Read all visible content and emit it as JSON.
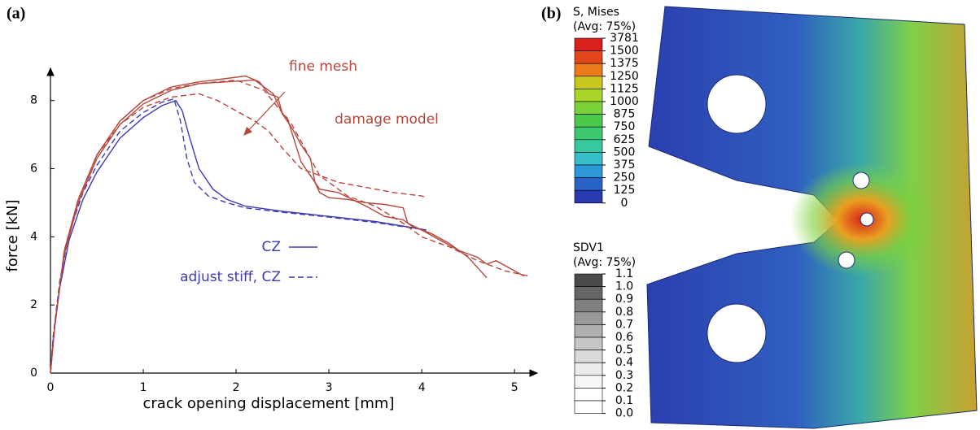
{
  "chart_data": {
    "type": "line",
    "panel_label": "(a)",
    "xlabel": "crack opening displacement [mm]",
    "ylabel": "force [kN]",
    "xlim": [
      0,
      5.2
    ],
    "ylim": [
      0,
      8.9
    ],
    "xticks": [
      0,
      1,
      2,
      3,
      4,
      5
    ],
    "yticks": [
      0,
      2,
      4,
      6,
      8
    ],
    "annotations": [
      "fine mesh",
      "damage model"
    ],
    "series": [
      {
        "name": "CZ",
        "color": "#3b3bb3",
        "dash": false,
        "x": [
          0,
          0.03,
          0.1,
          0.2,
          0.35,
          0.5,
          0.75,
          1,
          1.2,
          1.35,
          1.42,
          1.5,
          1.6,
          1.75,
          1.9,
          2.1,
          2.5,
          3,
          3.5,
          4.05
        ],
        "values": [
          0,
          1,
          2.5,
          3.9,
          5.1,
          5.9,
          6.9,
          7.5,
          7.85,
          8.0,
          7.7,
          6.9,
          6.0,
          5.4,
          5.1,
          4.9,
          4.75,
          4.6,
          4.45,
          4.2
        ]
      },
      {
        "name": "adjust stiff, CZ",
        "color": "#3b3bb3",
        "dash": true,
        "x": [
          0,
          0.03,
          0.1,
          0.2,
          0.35,
          0.5,
          0.75,
          1,
          1.2,
          1.33,
          1.4,
          1.47,
          1.55,
          1.7,
          1.9,
          2.1,
          2.5,
          3,
          3.5,
          4.05
        ],
        "values": [
          0,
          1.1,
          2.7,
          4.1,
          5.3,
          6.1,
          7.1,
          7.65,
          7.95,
          8.05,
          7.4,
          6.3,
          5.6,
          5.2,
          5.0,
          4.85,
          4.72,
          4.58,
          4.42,
          4.2
        ]
      },
      {
        "color": "#b5473d",
        "dash": false,
        "x": [
          0,
          0.05,
          0.15,
          0.3,
          0.5,
          0.75,
          1,
          1.3,
          1.6,
          1.9,
          2.1,
          2.25,
          2.35,
          2.45,
          2.5,
          2.6,
          2.7,
          2.8,
          2.85,
          2.9,
          3.0,
          3.2,
          3.4,
          3.6,
          3.8,
          3.85,
          4.0,
          4.2,
          4.4,
          4.6,
          4.7,
          4.8,
          5.0,
          5.1
        ],
        "values": [
          0,
          1.5,
          3.6,
          5.1,
          6.4,
          7.4,
          8.0,
          8.4,
          8.55,
          8.65,
          8.72,
          8.55,
          8.2,
          8.1,
          7.6,
          7.2,
          6.7,
          6.3,
          5.6,
          5.3,
          5.15,
          5.1,
          5.0,
          4.95,
          4.85,
          4.4,
          4.2,
          3.9,
          3.6,
          3.4,
          3.2,
          3.3,
          3.0,
          2.85
        ]
      },
      {
        "color": "#b5473d",
        "dash": false,
        "x": [
          0,
          0.05,
          0.15,
          0.3,
          0.5,
          0.75,
          1,
          1.3,
          1.6,
          1.9,
          2.2,
          2.4,
          2.5,
          2.55,
          2.7,
          2.9,
          3.1,
          3.4,
          3.6,
          3.8,
          3.9,
          4.1,
          4.3,
          4.5,
          4.7
        ],
        "values": [
          0,
          1.5,
          3.5,
          5.0,
          6.3,
          7.3,
          7.9,
          8.3,
          8.5,
          8.55,
          8.6,
          8.2,
          7.6,
          7.5,
          6.2,
          5.4,
          5.3,
          4.9,
          4.6,
          4.5,
          4.3,
          4.1,
          3.8,
          3.4,
          2.8
        ]
      },
      {
        "color": "#b5473d",
        "dash": true,
        "x": [
          0,
          0.05,
          0.15,
          0.3,
          0.5,
          0.75,
          1,
          1.3,
          1.6,
          1.8,
          2.0,
          2.2,
          2.35,
          2.5,
          2.7,
          2.9,
          3.1,
          3.4,
          3.7,
          4.0,
          4.05
        ],
        "values": [
          0,
          1.5,
          3.6,
          5.1,
          6.4,
          7.3,
          7.8,
          8.1,
          8.2,
          8.0,
          7.7,
          7.4,
          7.1,
          6.6,
          6.0,
          5.8,
          5.6,
          5.45,
          5.3,
          5.2,
          5.15
        ]
      },
      {
        "color": "#b5473d",
        "dash": true,
        "x": [
          0,
          0.05,
          0.15,
          0.3,
          0.5,
          0.75,
          1,
          1.3,
          1.6,
          2.0,
          2.3,
          2.6,
          2.9,
          3.2,
          3.5,
          3.8,
          4.0,
          4.3,
          4.6,
          4.9,
          5.15
        ],
        "values": [
          0,
          1.5,
          3.6,
          5.1,
          6.4,
          7.4,
          8.0,
          8.35,
          8.5,
          8.6,
          8.3,
          7.3,
          5.8,
          5.2,
          4.9,
          4.4,
          4.0,
          3.7,
          3.3,
          3.0,
          2.85
        ]
      }
    ]
  },
  "contour": {
    "panel_label": "(b)",
    "legends": [
      {
        "title": "S, Mises",
        "subtitle": "(Avg: 75%)",
        "levels": [
          3781,
          1500,
          1375,
          1250,
          1125,
          1000,
          875,
          750,
          625,
          500,
          375,
          250,
          125,
          0
        ],
        "colors": [
          "#d8211c",
          "#e4461b",
          "#ec7a1a",
          "#c9c61e",
          "#a9d52a",
          "#7bd23a",
          "#4cc84a",
          "#3ec870",
          "#38c8a0",
          "#36bfca",
          "#2b99d7",
          "#2a63c8",
          "#2a3bb0"
        ]
      },
      {
        "title": "SDV1",
        "subtitle": "(Avg: 75%)",
        "levels": [
          1.1,
          {
            "value": 1,
            "label": "1.0"
          },
          0.9,
          0.8,
          0.7,
          0.6,
          0.5,
          0.4,
          0.3,
          0.2,
          0.1,
          {
            "value": 0,
            "label": "0.0"
          }
        ],
        "colors": [
          "#4a4a4a",
          "#666666",
          "#808080",
          "#999999",
          "#b0b0b0",
          "#c6c6c6",
          "#dadada",
          "#ececec",
          "#f6f6f6",
          "#ffffff",
          "#ffffff"
        ]
      }
    ]
  }
}
